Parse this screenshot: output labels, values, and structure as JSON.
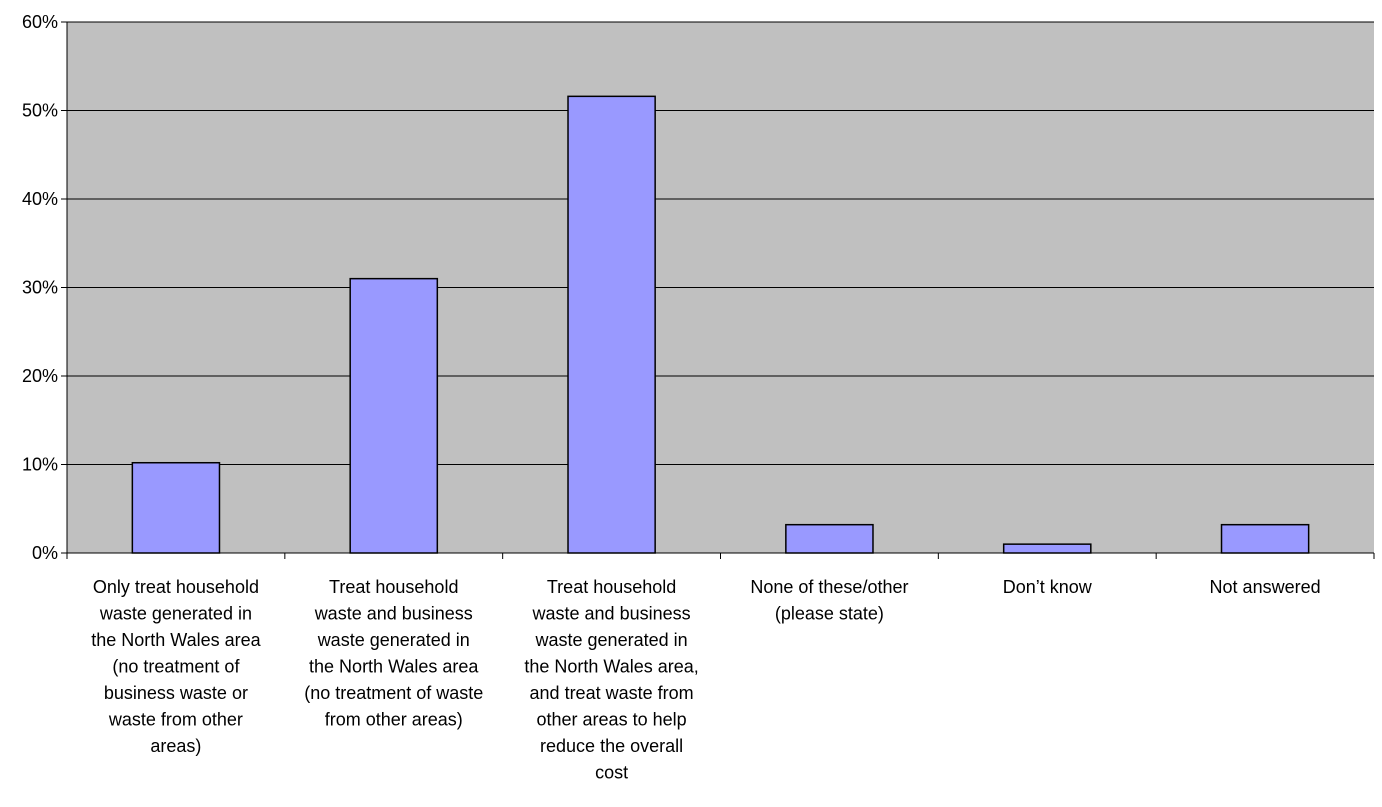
{
  "chart_data": {
    "type": "bar",
    "title": "",
    "xlabel": "",
    "ylabel": "",
    "ylim": [
      0,
      0.6
    ],
    "y_ticks": [
      0,
      0.1,
      0.2,
      0.3,
      0.4,
      0.5,
      0.6
    ],
    "y_tick_labels": [
      "0%",
      "10%",
      "20%",
      "30%",
      "40%",
      "50%",
      "60%"
    ],
    "grid": true,
    "legend": "none",
    "categories": [
      "Only treat household waste generated in the North Wales area (no treatment of business waste or waste from other areas)",
      "Treat household waste and business waste generated in the North Wales area (no treatment of waste from other areas)",
      "Treat household waste and business waste generated in the North Wales area, and treat waste from other areas to help reduce the overall cost",
      "None of these/other (please state)",
      "Don’t know",
      "Not answered"
    ],
    "category_lines": [
      [
        "Only treat household",
        "waste generated in",
        "the North Wales area",
        "(no treatment of",
        "business waste or",
        "waste from other",
        "areas)"
      ],
      [
        "Treat household",
        "waste and business",
        "waste generated in",
        "the North Wales area",
        "(no treatment of waste",
        "from other areas)"
      ],
      [
        "Treat household",
        "waste and business",
        "waste generated in",
        "the North Wales area,",
        "and treat waste from",
        "other areas to help",
        "reduce the overall",
        "cost"
      ],
      [
        "None of these/other",
        "(please state)"
      ],
      [
        "Don’t know"
      ],
      [
        "Not answered"
      ]
    ],
    "values": [
      0.102,
      0.31,
      0.516,
      0.032,
      0.01,
      0.032
    ],
    "colors": {
      "plot_background": "#c0c0c0",
      "bar_fill": "#9999ff",
      "bar_stroke": "#000000",
      "gridline": "#000000",
      "axis": "#000000"
    }
  }
}
